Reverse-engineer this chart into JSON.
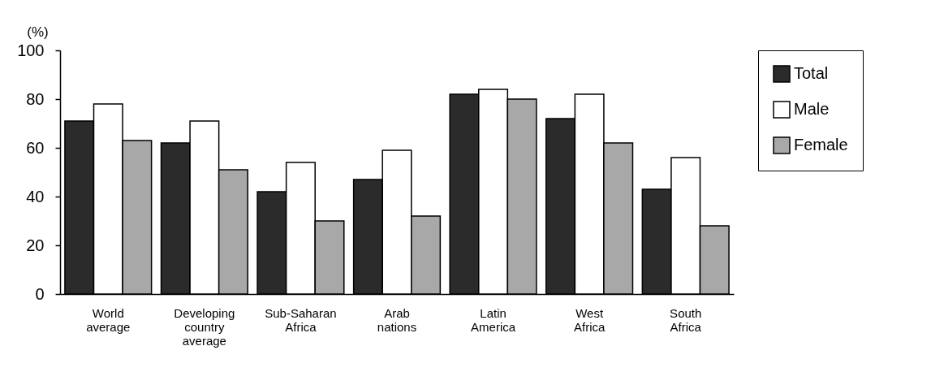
{
  "chart_data": {
    "type": "bar",
    "ylabel": "(%)",
    "categories": [
      "World average",
      "Developing country average",
      "Sub-Saharan Africa",
      "Arab nations",
      "Latin America",
      "West Africa",
      "South Africa"
    ],
    "series": [
      {
        "name": "Total",
        "color": "#2b2b2b",
        "values": [
          71,
          62,
          42,
          47,
          82,
          72,
          43
        ]
      },
      {
        "name": "Male",
        "color": "#ffffff",
        "values": [
          78,
          71,
          54,
          59,
          84,
          82,
          56
        ]
      },
      {
        "name": "Female",
        "color": "#a8a8a8",
        "values": [
          63,
          51,
          30,
          32,
          80,
          62,
          28
        ]
      }
    ],
    "ylim": [
      0,
      100
    ],
    "yticks": [
      0,
      20,
      40,
      60,
      80,
      100
    ],
    "grid": false,
    "legend": "right"
  }
}
